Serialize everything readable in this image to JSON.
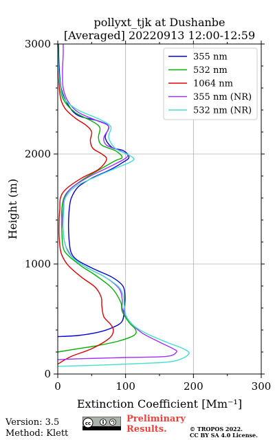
{
  "chart_data": {
    "type": "line",
    "title": "pollyxt_tjk at Dushanbe",
    "subtitle": "[Averaged] 20220913 12:00-12:59",
    "xlabel": "Extinction Coefficient [Mm⁻¹]",
    "ylabel": "Height (m)",
    "xlim": [
      0,
      300
    ],
    "ylim": [
      0,
      3000
    ],
    "xticks": [
      "0",
      "100",
      "200",
      "300"
    ],
    "yticks": [
      "0",
      "1000",
      "2000",
      "3000"
    ],
    "grid": true,
    "legend_position": "top-right",
    "series": [
      {
        "name": "355 nm",
        "color": "#0000dd",
        "points": [
          [
            0,
            340
          ],
          [
            30,
            350
          ],
          [
            60,
            380
          ],
          [
            80,
            420
          ],
          [
            95,
            480
          ],
          [
            98,
            600
          ],
          [
            99,
            700
          ],
          [
            96,
            800
          ],
          [
            80,
            880
          ],
          [
            55,
            950
          ],
          [
            30,
            1030
          ],
          [
            20,
            1100
          ],
          [
            17,
            1200
          ],
          [
            16,
            1300
          ],
          [
            16,
            1400
          ],
          [
            17,
            1500
          ],
          [
            20,
            1600
          ],
          [
            30,
            1700
          ],
          [
            50,
            1780
          ],
          [
            75,
            1850
          ],
          [
            95,
            1920
          ],
          [
            105,
            1970
          ],
          [
            97,
            2030
          ],
          [
            80,
            2060
          ],
          [
            70,
            2150
          ],
          [
            75,
            2250
          ],
          [
            60,
            2300
          ],
          [
            30,
            2350
          ],
          [
            15,
            2450
          ],
          [
            5,
            2600
          ],
          [
            2,
            2800
          ],
          [
            1,
            3000
          ]
        ]
      },
      {
        "name": "532 nm",
        "color": "#00b000",
        "points": [
          [
            0,
            200
          ],
          [
            30,
            230
          ],
          [
            60,
            260
          ],
          [
            90,
            300
          ],
          [
            112,
            350
          ],
          [
            115,
            400
          ],
          [
            105,
            470
          ],
          [
            95,
            570
          ],
          [
            93,
            650
          ],
          [
            80,
            780
          ],
          [
            55,
            900
          ],
          [
            35,
            980
          ],
          [
            15,
            1080
          ],
          [
            8,
            1150
          ],
          [
            6,
            1300
          ],
          [
            6,
            1400
          ],
          [
            6,
            1500
          ],
          [
            9,
            1600
          ],
          [
            18,
            1680
          ],
          [
            40,
            1780
          ],
          [
            65,
            1870
          ],
          [
            85,
            1940
          ],
          [
            95,
            1970
          ],
          [
            85,
            2030
          ],
          [
            65,
            2080
          ],
          [
            60,
            2150
          ],
          [
            62,
            2240
          ],
          [
            50,
            2300
          ],
          [
            25,
            2380
          ],
          [
            8,
            2500
          ],
          [
            3,
            2650
          ],
          [
            1,
            2800
          ],
          [
            0,
            3000
          ]
        ]
      },
      {
        "name": "1064 nm",
        "color": "#e00000",
        "points": [
          [
            0,
            90
          ],
          [
            20,
            160
          ],
          [
            50,
            230
          ],
          [
            75,
            320
          ],
          [
            82,
            390
          ],
          [
            78,
            450
          ],
          [
            68,
            520
          ],
          [
            65,
            620
          ],
          [
            64,
            700
          ],
          [
            55,
            790
          ],
          [
            35,
            880
          ],
          [
            15,
            990
          ],
          [
            5,
            1100
          ],
          [
            2,
            1250
          ],
          [
            2,
            1400
          ],
          [
            3,
            1500
          ],
          [
            4,
            1600
          ],
          [
            12,
            1680
          ],
          [
            35,
            1780
          ],
          [
            60,
            1860
          ],
          [
            72,
            1950
          ],
          [
            65,
            2000
          ],
          [
            52,
            2050
          ],
          [
            48,
            2120
          ],
          [
            50,
            2200
          ],
          [
            42,
            2260
          ],
          [
            25,
            2330
          ],
          [
            10,
            2420
          ],
          [
            3,
            2550
          ],
          [
            1,
            2800
          ],
          [
            0,
            3000
          ]
        ]
      },
      {
        "name": "355 nm (NR)",
        "color": "#9b30ff",
        "points": [
          [
            0,
            130
          ],
          [
            40,
            140
          ],
          [
            100,
            150
          ],
          [
            160,
            160
          ],
          [
            175,
            200
          ],
          [
            170,
            230
          ],
          [
            150,
            290
          ],
          [
            125,
            370
          ],
          [
            110,
            450
          ],
          [
            100,
            530
          ],
          [
            95,
            600
          ],
          [
            95,
            680
          ],
          [
            90,
            780
          ],
          [
            70,
            880
          ],
          [
            45,
            960
          ],
          [
            25,
            1040
          ],
          [
            15,
            1120
          ],
          [
            10,
            1200
          ],
          [
            8,
            1300
          ],
          [
            7,
            1400
          ],
          [
            8,
            1500
          ],
          [
            10,
            1600
          ],
          [
            20,
            1690
          ],
          [
            45,
            1790
          ],
          [
            75,
            1880
          ],
          [
            97,
            1950
          ],
          [
            103,
            1990
          ],
          [
            92,
            2030
          ],
          [
            72,
            2080
          ],
          [
            68,
            2150
          ],
          [
            75,
            2250
          ],
          [
            55,
            2310
          ],
          [
            30,
            2380
          ],
          [
            15,
            2480
          ],
          [
            8,
            2600
          ],
          [
            7,
            2750
          ],
          [
            8,
            2900
          ],
          [
            8,
            3000
          ]
        ]
      },
      {
        "name": "532 nm (NR)",
        "color": "#40e0d0",
        "points": [
          [
            0,
            70
          ],
          [
            60,
            80
          ],
          [
            120,
            95
          ],
          [
            170,
            115
          ],
          [
            193,
            180
          ],
          [
            185,
            230
          ],
          [
            160,
            290
          ],
          [
            130,
            370
          ],
          [
            110,
            450
          ],
          [
            100,
            540
          ],
          [
            98,
            620
          ],
          [
            97,
            700
          ],
          [
            90,
            790
          ],
          [
            70,
            880
          ],
          [
            45,
            960
          ],
          [
            25,
            1040
          ],
          [
            15,
            1110
          ],
          [
            10,
            1200
          ],
          [
            8,
            1300
          ],
          [
            8,
            1400
          ],
          [
            9,
            1500
          ],
          [
            11,
            1600
          ],
          [
            25,
            1700
          ],
          [
            55,
            1790
          ],
          [
            85,
            1870
          ],
          [
            108,
            1930
          ],
          [
            112,
            1960
          ],
          [
            102,
            2000
          ],
          [
            85,
            2050
          ],
          [
            75,
            2150
          ],
          [
            78,
            2250
          ],
          [
            60,
            2320
          ],
          [
            30,
            2400
          ],
          [
            10,
            2500
          ],
          [
            3,
            2650
          ],
          [
            1,
            2800
          ],
          [
            0,
            3000
          ]
        ]
      }
    ]
  },
  "footer": {
    "version": "Version: 3.5",
    "method": "Method: Klett",
    "preliminary_line1": "Preliminary",
    "preliminary_line2": "Results.",
    "copyright_line1": "© TROPOS 2022.",
    "copyright_line2": "CC BY SA 4.0 License."
  }
}
